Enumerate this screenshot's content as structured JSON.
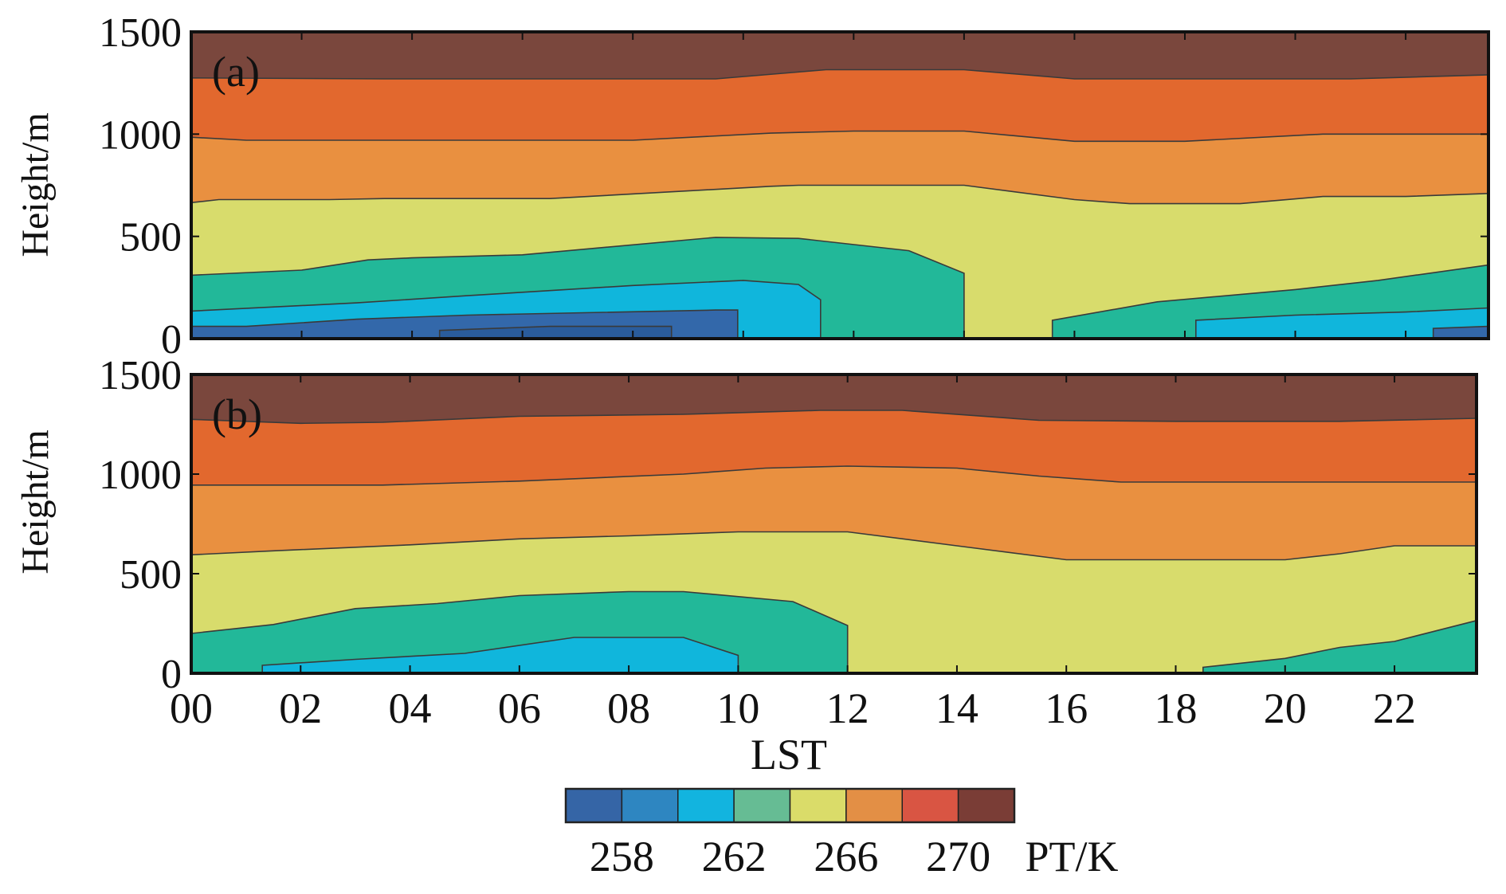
{
  "chart_data": {
    "type": "heatmap",
    "subtype": "filled-contour",
    "xlabel": "LST",
    "ylabel": "Height/m",
    "xlim": [
      0,
      23.5
    ],
    "ylim": [
      0,
      1500
    ],
    "x_ticks": [
      "00",
      "02",
      "04",
      "06",
      "08",
      "10",
      "12",
      "14",
      "16",
      "18",
      "20",
      "22"
    ],
    "y_ticks": [
      "0",
      "500",
      "1000",
      "1500"
    ],
    "colorbar": {
      "label": "PT/K",
      "ticks": [
        "258",
        "262",
        "266",
        "270"
      ],
      "colors": [
        "#3565a6",
        "#2e86c1",
        "#12b4df",
        "#66bc94",
        "#dadc69",
        "#e38f45",
        "#d95543",
        "#7a3d36"
      ]
    },
    "panels": [
      {
        "label": "(a)",
        "bands": [
          {
            "color": "#7a473d",
            "upper": [
              [
                0,
                1500
              ],
              [
                23.5,
                1500
              ]
            ]
          },
          {
            "color": "#e2682e",
            "upper": [
              [
                0,
                1275
              ],
              [
                3.5,
                1270
              ],
              [
                9.5,
                1270
              ],
              [
                11.5,
                1315
              ],
              [
                14,
                1315
              ],
              [
                16,
                1270
              ],
              [
                21,
                1270
              ],
              [
                23.5,
                1290
              ]
            ]
          },
          {
            "color": "#e99040",
            "upper": [
              [
                0,
                985
              ],
              [
                1,
                970
              ],
              [
                8,
                970
              ],
              [
                10.5,
                1005
              ],
              [
                12,
                1015
              ],
              [
                14,
                1015
              ],
              [
                16,
                965
              ],
              [
                18,
                965
              ],
              [
                20.5,
                1000
              ],
              [
                23.5,
                1000
              ]
            ]
          },
          {
            "color": "#d8dc6c",
            "upper": [
              [
                0,
                665
              ],
              [
                0.5,
                680
              ],
              [
                2.5,
                680
              ],
              [
                3.5,
                685
              ],
              [
                6.5,
                685
              ],
              [
                10.5,
                745
              ],
              [
                11,
                750
              ],
              [
                14,
                750
              ],
              [
                16,
                680
              ],
              [
                17,
                660
              ],
              [
                19,
                660
              ],
              [
                20.5,
                695
              ],
              [
                22,
                695
              ],
              [
                23.5,
                710
              ]
            ]
          },
          {
            "color": "#22b899",
            "upper": [
              [
                0,
                310
              ],
              [
                2,
                335
              ],
              [
                3.2,
                385
              ],
              [
                4,
                395
              ],
              [
                6,
                410
              ],
              [
                9.5,
                495
              ],
              [
                11,
                490
              ],
              [
                13,
                430
              ],
              [
                14,
                320
              ],
              [
                14,
                0
              ],
              [
                15.6,
                0
              ],
              [
                15.6,
                90
              ],
              [
                17.5,
                180
              ],
              [
                20,
                240
              ],
              [
                21.5,
                285
              ],
              [
                23.5,
                360
              ]
            ]
          },
          {
            "color": "#10b6dc",
            "upper": [
              [
                0,
                135
              ],
              [
                3,
                175
              ],
              [
                5,
                210
              ],
              [
                8,
                260
              ],
              [
                10,
                285
              ],
              [
                11,
                265
              ],
              [
                11.4,
                190
              ],
              [
                11.4,
                0
              ],
              [
                18.2,
                0
              ],
              [
                18.2,
                90
              ],
              [
                20,
                115
              ],
              [
                22,
                130
              ],
              [
                23.5,
                150
              ]
            ]
          },
          {
            "color": "#3368aa",
            "upper": [
              [
                0,
                60
              ],
              [
                1,
                60
              ],
              [
                3,
                95
              ],
              [
                5,
                115
              ],
              [
                9.5,
                140
              ],
              [
                9.9,
                140
              ],
              [
                9.9,
                0
              ],
              [
                22.5,
                0
              ],
              [
                22.5,
                50
              ],
              [
                23.5,
                60
              ]
            ]
          },
          {
            "color": "#2a5c9c",
            "upper": [
              [
                4.5,
                0
              ],
              [
                4.5,
                40
              ],
              [
                6.5,
                60
              ],
              [
                8.7,
                60
              ],
              [
                8.7,
                0
              ],
              [
                23.5,
                0
              ],
              [
                23.5,
                0
              ]
            ]
          }
        ]
      },
      {
        "label": "(b)",
        "bands": [
          {
            "color": "#7a473d",
            "upper": [
              [
                0,
                1500
              ],
              [
                23.5,
                1500
              ]
            ]
          },
          {
            "color": "#e2682e",
            "upper": [
              [
                0,
                1275
              ],
              [
                2,
                1255
              ],
              [
                3.5,
                1260
              ],
              [
                6,
                1290
              ],
              [
                9,
                1300
              ],
              [
                11.5,
                1320
              ],
              [
                13,
                1320
              ],
              [
                15.5,
                1270
              ],
              [
                18,
                1265
              ],
              [
                21,
                1265
              ],
              [
                23.5,
                1280
              ]
            ]
          },
          {
            "color": "#e99040",
            "upper": [
              [
                0,
                945
              ],
              [
                3.5,
                945
              ],
              [
                6,
                965
              ],
              [
                9,
                1000
              ],
              [
                10.5,
                1030
              ],
              [
                12,
                1040
              ],
              [
                14,
                1030
              ],
              [
                15.5,
                990
              ],
              [
                17,
                960
              ],
              [
                23.5,
                960
              ]
            ]
          },
          {
            "color": "#d8dc6c",
            "upper": [
              [
                0,
                595
              ],
              [
                1.5,
                615
              ],
              [
                4,
                645
              ],
              [
                6,
                675
              ],
              [
                8,
                690
              ],
              [
                10,
                710
              ],
              [
                12,
                710
              ],
              [
                14,
                640
              ],
              [
                16,
                570
              ],
              [
                20,
                570
              ],
              [
                21,
                600
              ],
              [
                22,
                640
              ],
              [
                23.5,
                640
              ]
            ]
          },
          {
            "color": "#22b899",
            "upper": [
              [
                0,
                200
              ],
              [
                1.5,
                245
              ],
              [
                3,
                325
              ],
              [
                4.5,
                350
              ],
              [
                6,
                390
              ],
              [
                8,
                410
              ],
              [
                9,
                410
              ],
              [
                11,
                360
              ],
              [
                12,
                240
              ],
              [
                12,
                0
              ],
              [
                18.5,
                0
              ],
              [
                18.5,
                30
              ],
              [
                20,
                75
              ],
              [
                21,
                130
              ],
              [
                22,
                160
              ],
              [
                23.5,
                265
              ]
            ]
          },
          {
            "color": "#10b6dc",
            "upper": [
              [
                0,
                0
              ],
              [
                1.3,
                0
              ],
              [
                1.3,
                40
              ],
              [
                3,
                70
              ],
              [
                5,
                100
              ],
              [
                7,
                180
              ],
              [
                9,
                180
              ],
              [
                10,
                90
              ],
              [
                10,
                0
              ],
              [
                23.5,
                0
              ]
            ]
          }
        ]
      }
    ]
  }
}
